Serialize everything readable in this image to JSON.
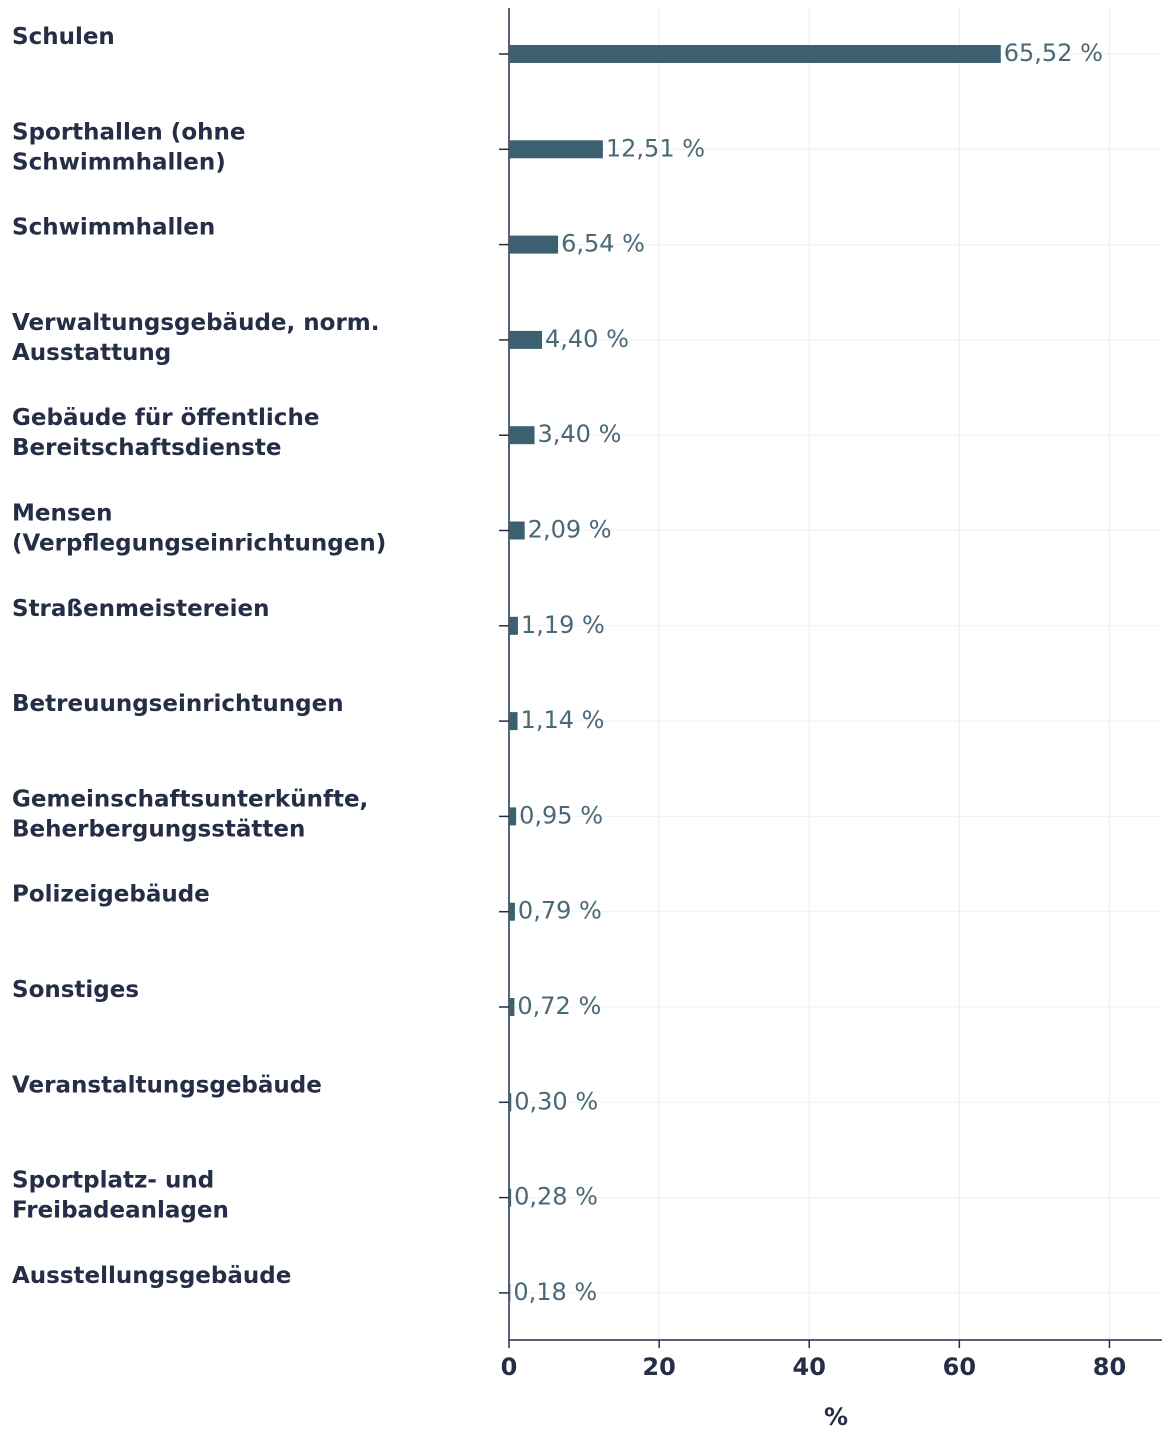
{
  "chart_data": {
    "type": "bar",
    "orientation": "horizontal",
    "x_label": "%",
    "categories": [
      "Schulen",
      "Sporthallen (ohne\nSchwimmhallen)",
      "Schwimmhallen",
      "Verwaltungsgebäude, norm.\nAusstattung",
      "Gebäude für öffentliche\nBereitschaftsdienste",
      "Mensen\n(Verpflegungseinrichtungen)",
      "Straßenmeistereien",
      "Betreuungseinrichtungen",
      "Gemeinschaftsunterkünfte,\nBeherbergungsstätten",
      "Polizeigebäude",
      "Sonstiges",
      "Veranstaltungsgebäude",
      "Sportplatz- und\nFreibadeanlagen",
      "Ausstellungsgebäude"
    ],
    "values": [
      65.52,
      12.51,
      6.54,
      4.4,
      3.4,
      2.09,
      1.19,
      1.14,
      0.95,
      0.79,
      0.72,
      0.3,
      0.28,
      0.18
    ],
    "value_labels": [
      "65,52 %",
      "12,51 %",
      "6,54 %",
      "4,40 %",
      "3,40 %",
      "2,09 %",
      "1,19 %",
      "1,14 %",
      "0,95 %",
      "0,79 %",
      "0,72 %",
      "0,30 %",
      "0,28 %",
      "0,18 %"
    ],
    "color": "#3d6070",
    "xlim": [
      0,
      87
    ],
    "xticks": [
      0,
      20,
      40,
      60,
      80
    ],
    "grid": true
  }
}
